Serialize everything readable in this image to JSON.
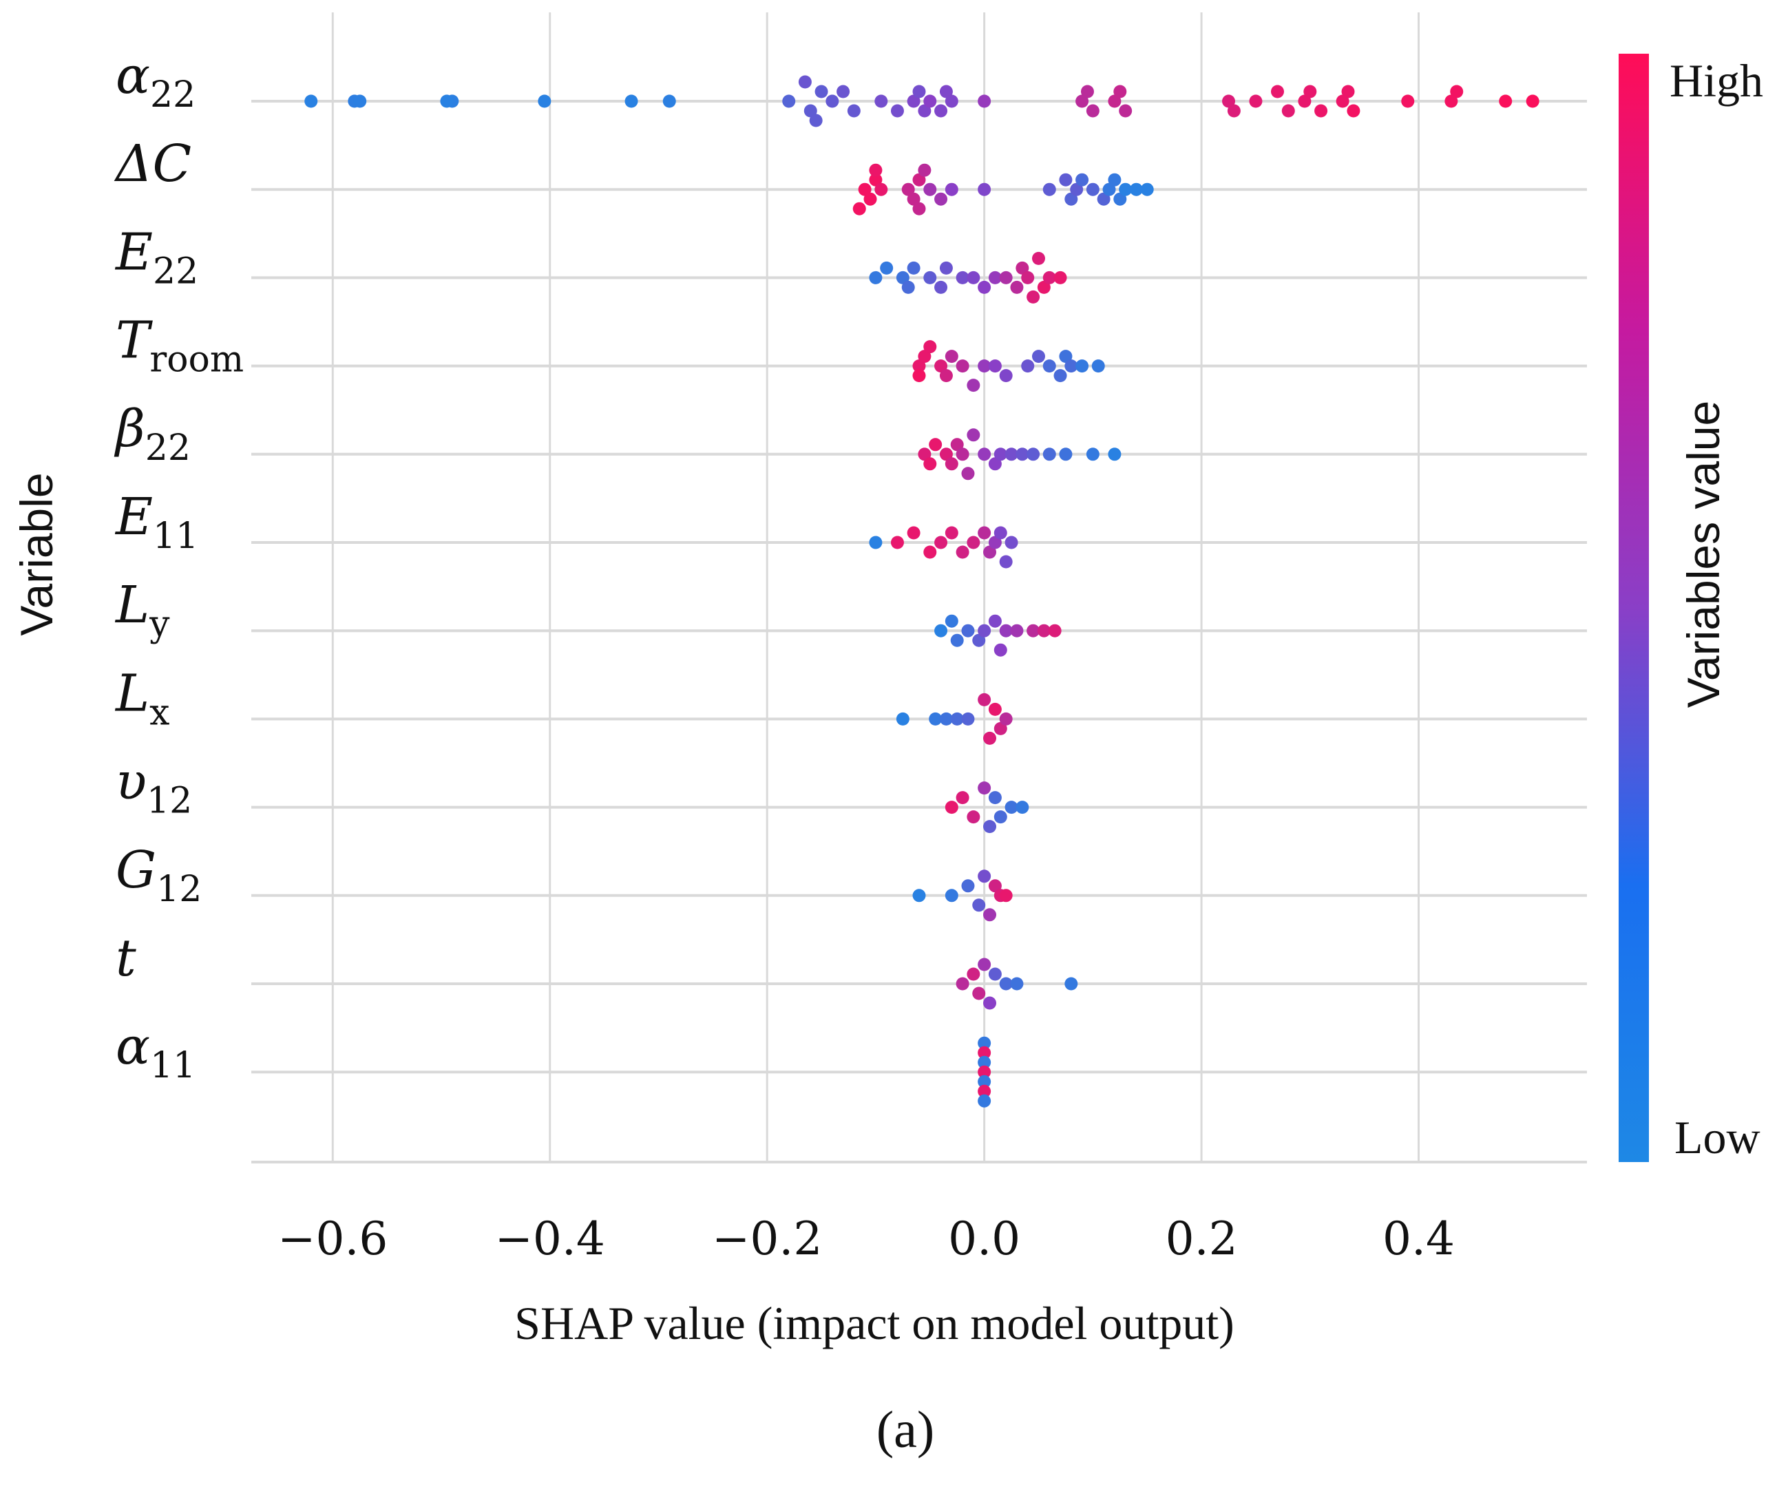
{
  "chart_data": {
    "type": "scatter",
    "subtype": "shap-beeswarm",
    "xlabel": "SHAP  value (impact on model output)",
    "ylabel": "Variable",
    "xlim": [
      -0.675,
      0.555
    ],
    "xticks": [
      -0.6,
      -0.4,
      -0.2,
      0.0,
      0.2,
      0.4
    ],
    "xtick_labels": [
      "−0.6",
      "−0.4",
      "−0.2",
      "0.0",
      "0.2",
      "0.4"
    ],
    "colorbar": {
      "title": "Variables value",
      "high_label": "High",
      "low_label": "Low",
      "low_color": "#1e88e5",
      "mid_color": "#8a3fc7",
      "high_color": "#ff0d57"
    },
    "caption": "(a)",
    "variables": [
      {
        "name": "α",
        "sub": "22",
        "points": [
          [
            -0.62,
            0.05,
            0
          ],
          [
            -0.58,
            0.07,
            0
          ],
          [
            -0.575,
            0.06,
            0
          ],
          [
            -0.49,
            0.06,
            0
          ],
          [
            -0.495,
            0.05,
            0
          ],
          [
            -0.405,
            0.05,
            0
          ],
          [
            -0.325,
            0.05,
            0
          ],
          [
            -0.29,
            0.06,
            0
          ],
          [
            -0.18,
            0.25,
            0
          ],
          [
            -0.165,
            0.35,
            -2
          ],
          [
            -0.16,
            0.3,
            1
          ],
          [
            -0.155,
            0.3,
            2
          ],
          [
            -0.15,
            0.3,
            -1
          ],
          [
            -0.14,
            0.32,
            0
          ],
          [
            -0.13,
            0.35,
            -1
          ],
          [
            -0.12,
            0.33,
            1
          ],
          [
            -0.095,
            0.4,
            0
          ],
          [
            -0.08,
            0.4,
            1
          ],
          [
            -0.065,
            0.45,
            0
          ],
          [
            -0.06,
            0.4,
            -1
          ],
          [
            -0.055,
            0.45,
            1
          ],
          [
            -0.05,
            0.5,
            0
          ],
          [
            -0.04,
            0.45,
            1
          ],
          [
            -0.035,
            0.45,
            -1
          ],
          [
            -0.03,
            0.45,
            0
          ],
          [
            0.0,
            0.55,
            0
          ],
          [
            0.09,
            0.7,
            0
          ],
          [
            0.095,
            0.7,
            -1
          ],
          [
            0.1,
            0.7,
            1
          ],
          [
            0.12,
            0.75,
            0
          ],
          [
            0.125,
            0.75,
            -1
          ],
          [
            0.13,
            0.72,
            1
          ],
          [
            0.225,
            0.85,
            0
          ],
          [
            0.23,
            0.85,
            1
          ],
          [
            0.25,
            0.88,
            0
          ],
          [
            0.27,
            0.9,
            -1
          ],
          [
            0.28,
            0.88,
            1
          ],
          [
            0.295,
            0.9,
            0
          ],
          [
            0.3,
            0.9,
            -1
          ],
          [
            0.31,
            0.92,
            1
          ],
          [
            0.33,
            0.92,
            0
          ],
          [
            0.335,
            0.92,
            -1
          ],
          [
            0.34,
            0.95,
            1
          ],
          [
            0.39,
            0.95,
            0
          ],
          [
            0.43,
            0.95,
            0
          ],
          [
            0.435,
            0.95,
            -1
          ],
          [
            0.48,
            0.98,
            0
          ],
          [
            0.505,
            0.98,
            0
          ]
        ]
      },
      {
        "name": "ΔC",
        "sub": "",
        "points": [
          [
            -0.11,
            0.95,
            0
          ],
          [
            -0.105,
            0.95,
            1
          ],
          [
            -0.1,
            0.95,
            -1
          ],
          [
            -0.115,
            0.95,
            2
          ],
          [
            -0.095,
            0.9,
            0
          ],
          [
            -0.1,
            0.92,
            -2
          ],
          [
            -0.07,
            0.75,
            0
          ],
          [
            -0.065,
            0.75,
            1
          ],
          [
            -0.06,
            0.8,
            -1
          ],
          [
            -0.06,
            0.75,
            2
          ],
          [
            -0.055,
            0.7,
            -2
          ],
          [
            -0.05,
            0.6,
            0
          ],
          [
            -0.04,
            0.6,
            1
          ],
          [
            -0.03,
            0.5,
            0
          ],
          [
            0.0,
            0.45,
            0
          ],
          [
            0.06,
            0.3,
            0
          ],
          [
            0.075,
            0.3,
            -1
          ],
          [
            0.08,
            0.25,
            1
          ],
          [
            0.085,
            0.3,
            0
          ],
          [
            0.09,
            0.2,
            -1
          ],
          [
            0.1,
            0.25,
            0
          ],
          [
            0.11,
            0.25,
            1
          ],
          [
            0.115,
            0.1,
            0
          ],
          [
            0.12,
            0.1,
            -1
          ],
          [
            0.125,
            0.1,
            1
          ],
          [
            0.13,
            0.05,
            0
          ],
          [
            0.14,
            0.05,
            0
          ],
          [
            0.15,
            0.05,
            0
          ]
        ]
      },
      {
        "name": "E",
        "sub": "22",
        "points": [
          [
            -0.1,
            0.1,
            0
          ],
          [
            -0.09,
            0.1,
            -1
          ],
          [
            -0.075,
            0.15,
            0
          ],
          [
            -0.07,
            0.2,
            1
          ],
          [
            -0.065,
            0.2,
            -1
          ],
          [
            -0.05,
            0.3,
            0
          ],
          [
            -0.04,
            0.35,
            1
          ],
          [
            -0.035,
            0.35,
            -1
          ],
          [
            -0.02,
            0.4,
            0
          ],
          [
            -0.01,
            0.45,
            0
          ],
          [
            0.0,
            0.5,
            1
          ],
          [
            0.01,
            0.55,
            0
          ],
          [
            0.02,
            0.65,
            0
          ],
          [
            0.03,
            0.7,
            1
          ],
          [
            0.035,
            0.75,
            -1
          ],
          [
            0.04,
            0.8,
            0
          ],
          [
            0.045,
            0.85,
            2
          ],
          [
            0.05,
            0.85,
            -2
          ],
          [
            0.055,
            0.9,
            1
          ],
          [
            0.06,
            0.85,
            0
          ],
          [
            0.07,
            0.9,
            0
          ]
        ]
      },
      {
        "name": "T",
        "sub": "room",
        "points": [
          [
            -0.06,
            0.9,
            0
          ],
          [
            -0.055,
            0.9,
            -1
          ],
          [
            -0.06,
            0.95,
            1
          ],
          [
            -0.05,
            0.9,
            -2
          ],
          [
            -0.04,
            0.85,
            0
          ],
          [
            -0.035,
            0.8,
            1
          ],
          [
            -0.03,
            0.7,
            -1
          ],
          [
            -0.02,
            0.7,
            0
          ],
          [
            -0.01,
            0.6,
            2
          ],
          [
            0.0,
            0.55,
            0
          ],
          [
            0.01,
            0.5,
            0
          ],
          [
            0.02,
            0.45,
            1
          ],
          [
            0.04,
            0.35,
            0
          ],
          [
            0.05,
            0.3,
            -1
          ],
          [
            0.06,
            0.2,
            0
          ],
          [
            0.07,
            0.2,
            1
          ],
          [
            0.075,
            0.15,
            -1
          ],
          [
            0.08,
            0.2,
            0
          ],
          [
            0.09,
            0.1,
            0
          ],
          [
            0.105,
            0.1,
            0
          ]
        ]
      },
      {
        "name": "β",
        "sub": "22",
        "points": [
          [
            -0.055,
            0.85,
            0
          ],
          [
            -0.05,
            0.9,
            1
          ],
          [
            -0.045,
            0.9,
            -1
          ],
          [
            -0.035,
            0.85,
            0
          ],
          [
            -0.03,
            0.8,
            1
          ],
          [
            -0.025,
            0.75,
            -1
          ],
          [
            -0.02,
            0.7,
            0
          ],
          [
            -0.015,
            0.65,
            2
          ],
          [
            -0.01,
            0.6,
            -2
          ],
          [
            0.0,
            0.55,
            0
          ],
          [
            0.01,
            0.5,
            1
          ],
          [
            0.015,
            0.45,
            0
          ],
          [
            0.025,
            0.4,
            0
          ],
          [
            0.035,
            0.35,
            0
          ],
          [
            0.045,
            0.3,
            0
          ],
          [
            0.06,
            0.2,
            0
          ],
          [
            0.075,
            0.15,
            0
          ],
          [
            0.1,
            0.1,
            0
          ],
          [
            0.12,
            0.05,
            0
          ]
        ]
      },
      {
        "name": "E",
        "sub": "11",
        "points": [
          [
            -0.1,
            0.05,
            0
          ],
          [
            -0.08,
            0.9,
            0
          ],
          [
            -0.065,
            0.9,
            -1
          ],
          [
            -0.05,
            0.9,
            1
          ],
          [
            -0.04,
            0.85,
            0
          ],
          [
            -0.03,
            0.85,
            -1
          ],
          [
            -0.02,
            0.8,
            1
          ],
          [
            -0.01,
            0.8,
            0
          ],
          [
            0.0,
            0.7,
            -1
          ],
          [
            0.005,
            0.65,
            1
          ],
          [
            0.01,
            0.55,
            0
          ],
          [
            0.015,
            0.45,
            -1
          ],
          [
            0.02,
            0.4,
            2
          ],
          [
            0.025,
            0.4,
            0
          ]
        ]
      },
      {
        "name": "L",
        "sub": "y",
        "points": [
          [
            -0.04,
            0.05,
            0
          ],
          [
            -0.03,
            0.1,
            -1
          ],
          [
            -0.025,
            0.15,
            1
          ],
          [
            -0.015,
            0.2,
            0
          ],
          [
            -0.005,
            0.3,
            1
          ],
          [
            0.0,
            0.4,
            0
          ],
          [
            0.01,
            0.45,
            -1
          ],
          [
            0.015,
            0.5,
            2
          ],
          [
            0.02,
            0.55,
            0
          ],
          [
            0.03,
            0.6,
            0
          ],
          [
            0.045,
            0.7,
            0
          ],
          [
            0.055,
            0.8,
            0
          ],
          [
            0.065,
            0.85,
            0
          ]
        ]
      },
      {
        "name": "L",
        "sub": "x",
        "points": [
          [
            -0.075,
            0.05,
            0
          ],
          [
            -0.045,
            0.1,
            0
          ],
          [
            -0.035,
            0.15,
            0
          ],
          [
            -0.025,
            0.2,
            0
          ],
          [
            -0.015,
            0.25,
            0
          ],
          [
            0.0,
            0.8,
            -2
          ],
          [
            0.005,
            0.85,
            2
          ],
          [
            0.01,
            0.9,
            -1
          ],
          [
            0.015,
            0.8,
            1
          ],
          [
            0.02,
            0.7,
            0
          ]
        ]
      },
      {
        "name": "υ",
        "sub": "12",
        "points": [
          [
            -0.03,
            0.9,
            0
          ],
          [
            -0.02,
            0.85,
            -1
          ],
          [
            -0.01,
            0.8,
            1
          ],
          [
            0.0,
            0.6,
            -2
          ],
          [
            0.005,
            0.3,
            2
          ],
          [
            0.01,
            0.2,
            -1
          ],
          [
            0.015,
            0.2,
            1
          ],
          [
            0.025,
            0.15,
            0
          ],
          [
            0.035,
            0.1,
            0
          ]
        ]
      },
      {
        "name": "G",
        "sub": "12",
        "points": [
          [
            -0.06,
            0.05,
            0
          ],
          [
            -0.03,
            0.1,
            0
          ],
          [
            -0.015,
            0.2,
            -1
          ],
          [
            -0.005,
            0.3,
            1
          ],
          [
            0.0,
            0.4,
            -2
          ],
          [
            0.005,
            0.6,
            2
          ],
          [
            0.01,
            0.8,
            -1
          ],
          [
            0.015,
            0.85,
            0
          ],
          [
            0.02,
            0.9,
            0
          ]
        ]
      },
      {
        "name": "t",
        "sub": "",
        "points": [
          [
            -0.02,
            0.7,
            0
          ],
          [
            -0.01,
            0.8,
            -1
          ],
          [
            -0.005,
            0.75,
            1
          ],
          [
            0.0,
            0.6,
            -2
          ],
          [
            0.005,
            0.5,
            2
          ],
          [
            0.01,
            0.3,
            -1
          ],
          [
            0.02,
            0.2,
            0
          ],
          [
            0.03,
            0.15,
            0
          ],
          [
            0.08,
            0.1,
            0
          ]
        ]
      },
      {
        "name": "α",
        "sub": "11",
        "points": [
          [
            0.0,
            0.1,
            -3
          ],
          [
            0.0,
            0.9,
            -2
          ],
          [
            0.0,
            0.1,
            -1
          ],
          [
            0.0,
            0.9,
            0
          ],
          [
            0.0,
            0.1,
            1
          ],
          [
            0.0,
            0.9,
            2
          ],
          [
            0.0,
            0.1,
            3
          ]
        ]
      }
    ]
  }
}
